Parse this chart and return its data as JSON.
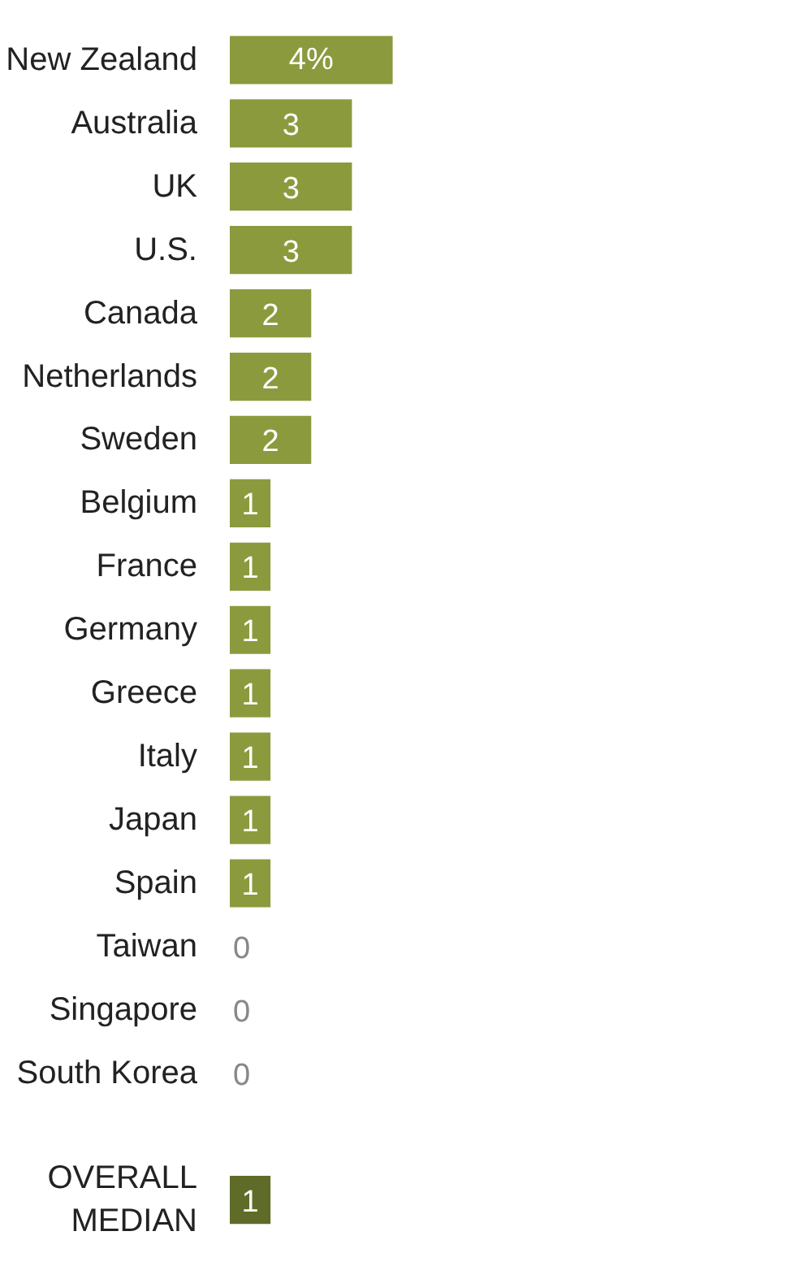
{
  "chart_data": {
    "type": "bar",
    "orientation": "horizontal",
    "categories": [
      "New Zealand",
      "Australia",
      "UK",
      "U.S.",
      "Canada",
      "Netherlands",
      "Sweden",
      "Belgium",
      "France",
      "Germany",
      "Greece",
      "Italy",
      "Japan",
      "Spain",
      "Taiwan",
      "Singapore",
      "South Korea",
      null,
      "OVERALL\nMEDIAN"
    ],
    "values": [
      4,
      3,
      3,
      3,
      2,
      2,
      2,
      1,
      1,
      1,
      1,
      1,
      1,
      1,
      0,
      0,
      0,
      null,
      1
    ],
    "value_labels": [
      "4%",
      "3",
      "3",
      "3",
      "2",
      "2",
      "2",
      "1",
      "1",
      "1",
      "1",
      "1",
      "1",
      "1",
      "0",
      "0",
      "0",
      null,
      "1"
    ],
    "colors": [
      "#8c9a3e",
      "#8c9a3e",
      "#8c9a3e",
      "#8c9a3e",
      "#8c9a3e",
      "#8c9a3e",
      "#8c9a3e",
      "#8c9a3e",
      "#8c9a3e",
      "#8c9a3e",
      "#8c9a3e",
      "#8c9a3e",
      "#8c9a3e",
      "#8c9a3e",
      "#8c9a3e",
      "#8c9a3e",
      "#8c9a3e",
      null,
      "#5f6b28"
    ],
    "tick_labels": "y",
    "grid": false
  }
}
